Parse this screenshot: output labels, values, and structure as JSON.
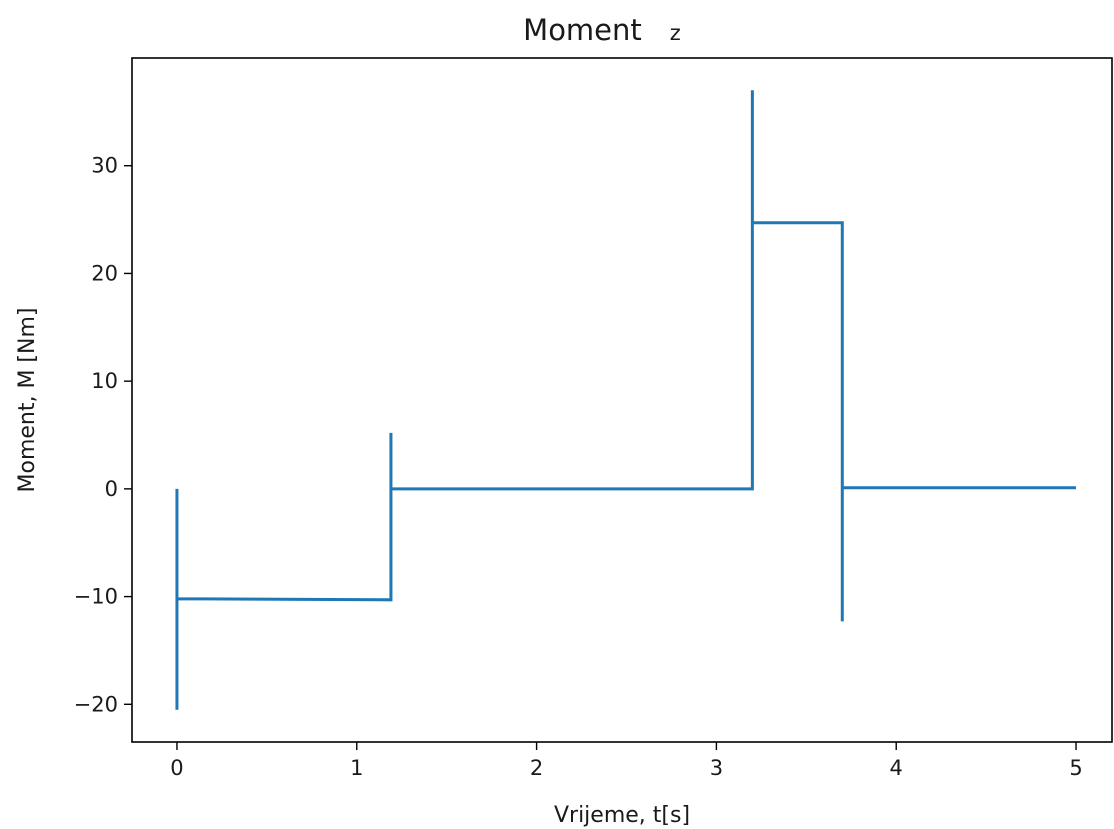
{
  "chart_data": {
    "type": "line",
    "title": "Moment",
    "title_suffix": "z",
    "xlabel": "Vrijeme, t[s]",
    "ylabel": "Moment, M [Nm]",
    "xlim": [
      -0.25,
      5.2
    ],
    "ylim": [
      -23.5,
      40.0
    ],
    "xticks": [
      0,
      1,
      2,
      3,
      4,
      5
    ],
    "xtick_labels": [
      "0",
      "1",
      "2",
      "3",
      "4",
      "5"
    ],
    "yticks": [
      -20,
      -10,
      0,
      10,
      20,
      30
    ],
    "ytick_labels": [
      "−20",
      "−10",
      "0",
      "10",
      "20",
      "30"
    ],
    "grid": false,
    "line_color": "#1f77b4",
    "series": [
      {
        "x": [
          0.0,
          0.0,
          0.0,
          0.0,
          0.0,
          1.19,
          1.19,
          1.19,
          1.19,
          1.2,
          3.2,
          3.2,
          3.2,
          3.2,
          3.7,
          3.7,
          3.7,
          3.7,
          3.7,
          5.0
        ],
        "y": [
          0.0,
          -20.5,
          -10.2,
          -10.2,
          -10.2,
          -10.3,
          5.2,
          0.0,
          0.0,
          0.0,
          0.0,
          37.0,
          24.7,
          24.7,
          24.7,
          -12.3,
          0.2,
          -12.0,
          0.1,
          0.1
        ]
      }
    ]
  }
}
